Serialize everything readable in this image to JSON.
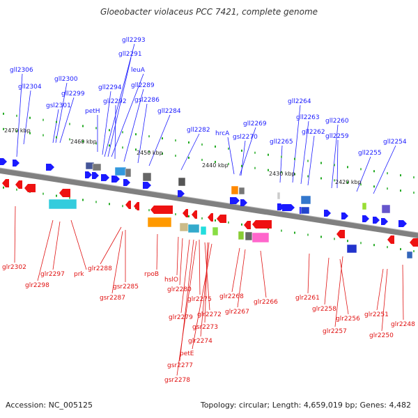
{
  "title": "Gloeobacter violaceus PCC 7421, complete genome",
  "footer": {
    "accession": "Accession: NC_005125",
    "topology": "Topology: circular; Length: 4,659,019 bp; Genes: 4,482"
  },
  "colors": {
    "top_label": "#1a1aff",
    "bottom_label": "#e01010",
    "forward_gene": "#1a1aff",
    "reverse_gene": "#ee1111",
    "tick": "#22aa22",
    "axis": "#808080"
  },
  "kbp_ticks": [
    "2470 kbp",
    "2460 kbp",
    "2450 kbp",
    "2440 kbp",
    "2430 kbp",
    "2420 kbp"
  ],
  "top_labels": [
    "gll2306",
    "gll2304",
    "gll2300",
    "gll2299",
    "gsl2301",
    "petH",
    "gll2293",
    "gll2291",
    "leuA",
    "gll2294",
    "gll2292",
    "gll2289",
    "gsl2286",
    "gll2284",
    "gll2282",
    "hrcA",
    "gll2269",
    "gsl2270",
    "gll2265",
    "gll2264",
    "gll2263",
    "gll2262",
    "gll2260",
    "gll2259",
    "gll2255",
    "gll2254"
  ],
  "bottom_labels": [
    "glr2302",
    "glr2298",
    "glr2297",
    "prk",
    "glr2288",
    "gsr2285",
    "gsr2287",
    "rpoB",
    "hslO",
    "glr2280",
    "glr2279",
    "glr2275",
    "glr2272",
    "gsr2273",
    "glr2274",
    "petE",
    "gsr2277",
    "gsr2278",
    "glr2268",
    "glr2267",
    "glr2266",
    "glr2261",
    "glr2258",
    "glr2257",
    "glr2256",
    "glr2251",
    "glr2250",
    "glr2248"
  ]
}
